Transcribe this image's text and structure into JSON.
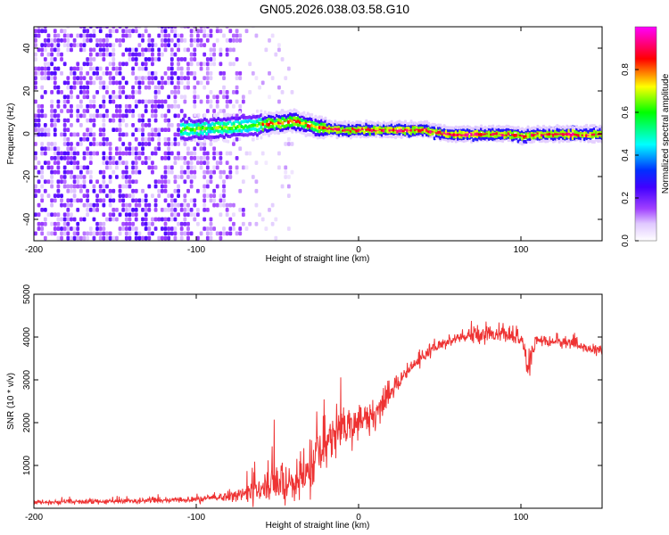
{
  "title": "GN05.2026.038.03.58.G10",
  "chart_data": [
    {
      "type": "heatmap",
      "name": "spectrogram",
      "xlabel": "Height of straight line (km)",
      "ylabel": "Frequency (Hz)",
      "xlim": [
        -200,
        150
      ],
      "ylim": [
        -50,
        50
      ],
      "xticks": [
        -200,
        -100,
        0,
        100
      ],
      "yticks": [
        -40,
        -20,
        0,
        20,
        40
      ],
      "colorbar": {
        "label": "Normalized spectral amplitude",
        "range": [
          0,
          1
        ],
        "ticks": [
          0.0,
          0.2,
          0.4,
          0.6,
          0.8
        ],
        "tick_labels": [
          "0.0",
          "0.2",
          "0.4",
          "0.6",
          "0.8"
        ],
        "colormap": [
          "#ffffff",
          "#e2c8f8",
          "#8a2be2",
          "#5a00d8",
          "#0000ff",
          "#00ffff",
          "#00ff00",
          "#ffff00",
          "#ff0000",
          "#ff00ff"
        ]
      },
      "ridge": [
        {
          "x": -108,
          "y": 2
        },
        {
          "x": -80,
          "y": 3
        },
        {
          "x": -50,
          "y": 5
        },
        {
          "x": -40,
          "y": 6
        },
        {
          "x": -25,
          "y": 3
        },
        {
          "x": -10,
          "y": 2
        },
        {
          "x": 0,
          "y": 2
        },
        {
          "x": 40,
          "y": 2
        },
        {
          "x": 55,
          "y": 0
        },
        {
          "x": 95,
          "y": 0
        },
        {
          "x": 100,
          "y": -1
        },
        {
          "x": 110,
          "y": 0
        },
        {
          "x": 150,
          "y": 0
        }
      ]
    },
    {
      "type": "line",
      "name": "snr",
      "xlabel": "Height of straight line (km)",
      "ylabel": "SNR (10 * v/v)",
      "xlim": [
        -200,
        150
      ],
      "ylim": [
        0,
        5000
      ],
      "xticks": [
        -200,
        -100,
        0,
        100
      ],
      "yticks": [
        1000,
        2000,
        3000,
        4000,
        5000
      ],
      "color": "#ee3333",
      "series": [
        {
          "name": "SNR",
          "x": [
            -200,
            -150,
            -100,
            -75,
            -60,
            -50,
            -40,
            -30,
            -20,
            -10,
            0,
            10,
            20,
            30,
            40,
            50,
            60,
            70,
            80,
            90,
            100,
            104,
            110,
            120,
            130,
            140,
            150
          ],
          "y": [
            130,
            160,
            200,
            300,
            450,
            600,
            500,
            900,
            1500,
            2000,
            1950,
            2200,
            2700,
            3200,
            3550,
            3800,
            3950,
            4050,
            4100,
            4050,
            3950,
            3300,
            3950,
            3900,
            3850,
            3750,
            3650
          ],
          "noise": [
            60,
            60,
            70,
            120,
            350,
            500,
            450,
            600,
            700,
            500,
            400,
            350,
            200,
            150,
            150,
            150,
            160,
            180,
            200,
            180,
            180,
            300,
            150,
            120,
            120,
            120,
            120
          ]
        }
      ]
    }
  ]
}
